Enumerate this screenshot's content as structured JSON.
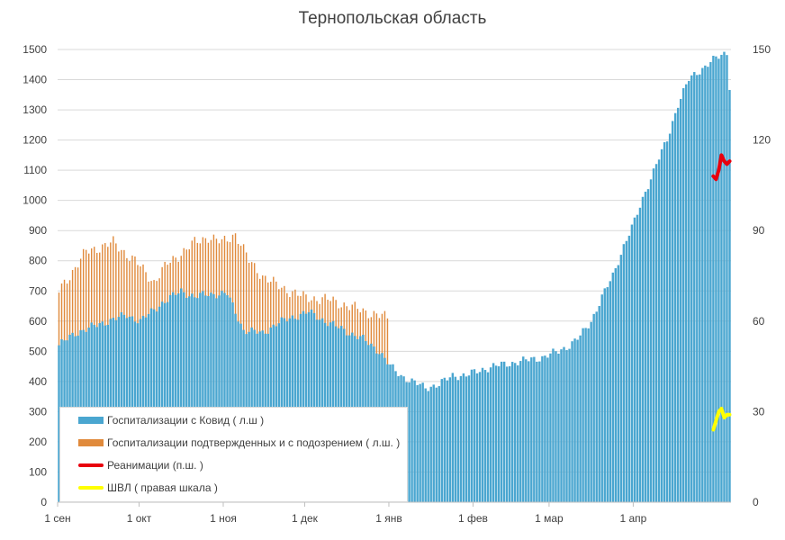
{
  "chart_data": {
    "type": "bar",
    "title": "Тернопольская область",
    "x_tick_labels": [
      "1 сен",
      "1 окт",
      "1 ноя",
      "1 дек",
      "1 янв",
      "1 фев",
      "1 мар",
      "1 апр"
    ],
    "y_left": {
      "ylim": [
        0,
        1500
      ],
      "ticks": [
        0,
        100,
        200,
        300,
        400,
        500,
        600,
        700,
        800,
        900,
        1000,
        1100,
        1200,
        1300,
        1400,
        1500
      ]
    },
    "y_right": {
      "ylim": [
        0,
        150
      ],
      "ticks": [
        0,
        30,
        60,
        90,
        120,
        150
      ]
    },
    "legend_position": "bottom-left",
    "grid": true,
    "series": [
      {
        "name": "Госпитализации с Ковид ( л.ш )",
        "kind": "bar",
        "axis": "left",
        "color": "#4aa6d0",
        "start": "1 сен",
        "anchors": [
          [
            0,
            520
          ],
          [
            6,
            560
          ],
          [
            12,
            580
          ],
          [
            18,
            600
          ],
          [
            25,
            620
          ],
          [
            30,
            600
          ],
          [
            38,
            660
          ],
          [
            45,
            700
          ],
          [
            50,
            680
          ],
          [
            55,
            690
          ],
          [
            62,
            690
          ],
          [
            68,
            570
          ],
          [
            75,
            560
          ],
          [
            80,
            590
          ],
          [
            85,
            610
          ],
          [
            92,
            630
          ],
          [
            98,
            600
          ],
          [
            105,
            570
          ],
          [
            112,
            540
          ],
          [
            118,
            500
          ],
          [
            122,
            450
          ],
          [
            126,
            420
          ],
          [
            130,
            400
          ],
          [
            135,
            380
          ],
          [
            140,
            390
          ],
          [
            145,
            420
          ],
          [
            150,
            420
          ],
          [
            156,
            440
          ],
          [
            160,
            450
          ],
          [
            166,
            460
          ],
          [
            172,
            470
          ],
          [
            178,
            480
          ],
          [
            184,
            500
          ],
          [
            188,
            520
          ],
          [
            192,
            550
          ],
          [
            196,
            600
          ],
          [
            200,
            680
          ],
          [
            204,
            750
          ],
          [
            208,
            850
          ],
          [
            212,
            930
          ],
          [
            216,
            1030
          ],
          [
            220,
            1120
          ],
          [
            224,
            1200
          ],
          [
            228,
            1320
          ],
          [
            232,
            1400
          ],
          [
            236,
            1430
          ],
          [
            240,
            1460
          ],
          [
            244,
            1480
          ],
          [
            246,
            1490
          ],
          [
            247,
            1380
          ]
        ]
      },
      {
        "name": "Госпитализации подтвержденных и с подозрением ( л.ш. )",
        "kind": "bar",
        "axis": "left",
        "color": "#e08a3c",
        "start": "1 сен",
        "end": "31 дек",
        "anchors": [
          [
            0,
            700
          ],
          [
            10,
            830
          ],
          [
            20,
            860
          ],
          [
            28,
            800
          ],
          [
            35,
            730
          ],
          [
            40,
            790
          ],
          [
            50,
            860
          ],
          [
            55,
            880
          ],
          [
            60,
            860
          ],
          [
            65,
            890
          ],
          [
            70,
            800
          ],
          [
            75,
            750
          ],
          [
            80,
            720
          ],
          [
            90,
            680
          ],
          [
            100,
            670
          ],
          [
            110,
            640
          ],
          [
            121,
            610
          ]
        ]
      },
      {
        "name": "Реанимации (п.ш. )",
        "kind": "line",
        "axis": "right",
        "color": "#e8000d",
        "values": [
          108,
          107,
          110,
          115,
          113,
          112,
          113
        ]
      },
      {
        "name": "ШВЛ ( правая шкала )",
        "kind": "line",
        "axis": "right",
        "color": "#ffff00",
        "values": [
          24,
          27,
          30,
          31,
          28,
          29,
          29
        ]
      }
    ]
  },
  "legend_items": [
    {
      "label": "Госпитализации с Ковид ( л.ш )"
    },
    {
      "label": "Госпитализации подтвержденных и с подозрением ( л.ш. )"
    },
    {
      "label": "Реанимации (п.ш. )"
    },
    {
      "label": "ШВЛ ( правая шкала )"
    }
  ]
}
